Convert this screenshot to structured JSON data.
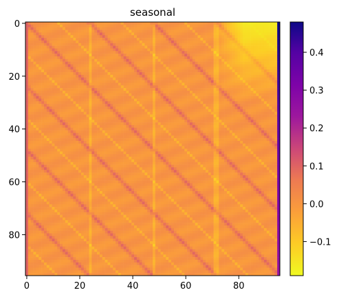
{
  "chart_data": {
    "type": "heatmap",
    "title": "seasonal",
    "xlabel": "",
    "ylabel": "",
    "size": 96,
    "x_range": [
      0,
      95
    ],
    "y_range": [
      0,
      95
    ],
    "y_inverted": true,
    "x_ticks": [
      0,
      20,
      40,
      60,
      80
    ],
    "y_ticks": [
      0,
      20,
      40,
      60,
      80
    ],
    "colormap": "plasma_r",
    "colorbar": {
      "vmin": -0.19,
      "vmax": 0.48,
      "ticks": [
        -0.1,
        0.0,
        0.1,
        0.2,
        0.3,
        0.4
      ],
      "tick_labels": [
        "−0.1",
        "0.0",
        "0.1",
        "0.2",
        "0.3",
        "0.4"
      ]
    },
    "pattern": {
      "description_values": "cross-correlation matrix with diagonal bands repeating every 24 steps",
      "base_value": 0.0,
      "band_period": 24,
      "band_peak": 0.08,
      "band_trough": -0.08,
      "light_columns": [
        24,
        48,
        71,
        72
      ],
      "right_edge_column": 95,
      "right_edge_top_value": 0.48,
      "right_edge_bottom_value": 0.25,
      "left_edge_value": 0.1,
      "top_right_region_value": -0.18
    }
  }
}
